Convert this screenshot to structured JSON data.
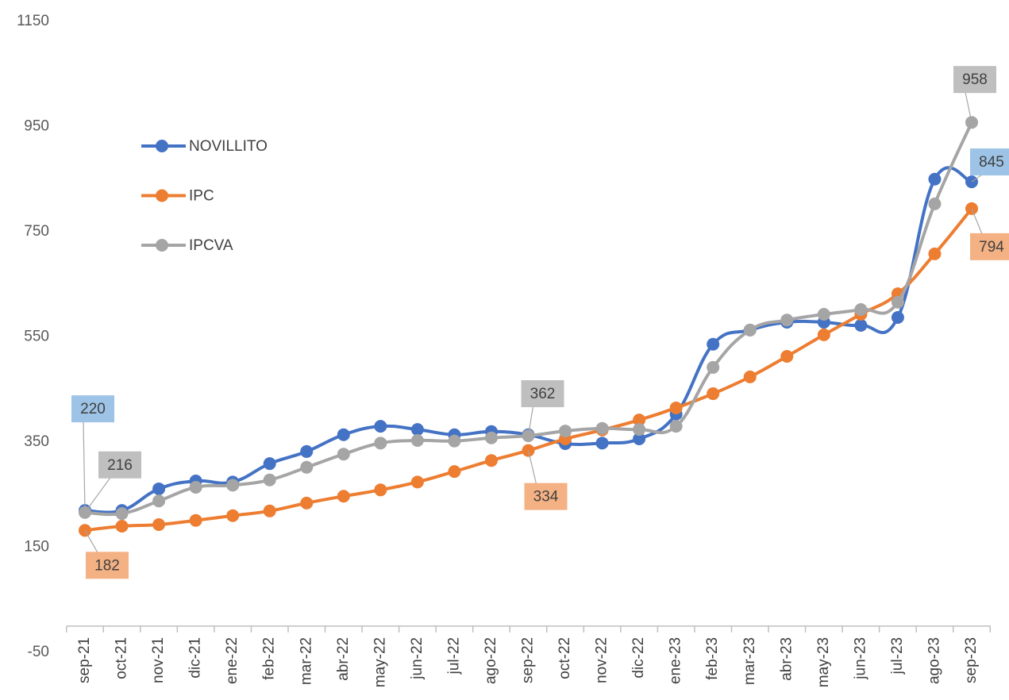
{
  "chart_data": {
    "type": "line",
    "categories": [
      "sep-21",
      "oct-21",
      "nov-21",
      "dic-21",
      "ene-22",
      "feb-22",
      "mar-22",
      "abr-22",
      "may-22",
      "jun-22",
      "jul-22",
      "ago-22",
      "sep-22",
      "oct-22",
      "nov-22",
      "dic-22",
      "ene-23",
      "feb-23",
      "mar-23",
      "abr-23",
      "may-23",
      "jun-23",
      "jul-23",
      "ago-23",
      "sep-23"
    ],
    "series": [
      {
        "name": "NOVILLITO",
        "color": "#4472c4",
        "label_color": "#9dc3e6",
        "label_indices": [
          0,
          24
        ],
        "values": [
          220,
          220,
          261,
          276,
          274,
          309,
          332,
          364,
          380,
          374,
          364,
          370,
          364,
          347,
          348,
          356,
          403,
          536,
          563,
          578,
          578,
          572,
          587,
          850,
          845
        ]
      },
      {
        "name": "IPC",
        "color": "#ed7d31",
        "label_color": "#f4b183",
        "label_indices": [
          0,
          12,
          24
        ],
        "values": [
          182,
          190,
          193,
          201,
          210,
          219,
          234,
          247,
          259,
          274,
          294,
          315,
          334,
          356,
          373,
          392,
          415,
          442,
          474,
          513,
          554,
          593,
          632,
          708,
          794
        ]
      },
      {
        "name": "IPCVA",
        "color": "#a5a5a5",
        "label_color": "#bfbfbf",
        "label_indices": [
          0,
          12,
          24
        ],
        "values": [
          216,
          214,
          238,
          264,
          268,
          278,
          302,
          327,
          348,
          353,
          352,
          358,
          362,
          371,
          376,
          374,
          380,
          492,
          563,
          582,
          593,
          602,
          616,
          803,
          958
        ]
      }
    ],
    "ylim": [
      -50,
      1150
    ],
    "yticks": [
      -50,
      150,
      350,
      550,
      750,
      950,
      1150
    ],
    "grid": false,
    "legend": "upper left"
  }
}
